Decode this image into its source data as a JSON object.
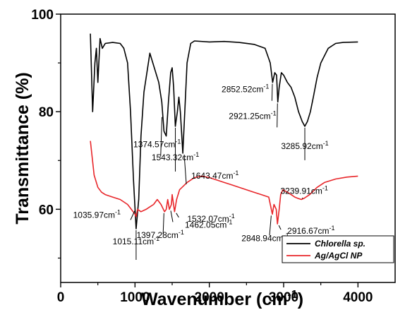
{
  "chart_data": {
    "type": "line",
    "xlabel": "Wavenumber (cm",
    "xlabel_sup": "-1",
    "xlabel_close": ")",
    "ylabel": "Transmittance (%)",
    "xlim": [
      0,
      4500
    ],
    "ylim": [
      45,
      100
    ],
    "x_ticks": [
      0,
      1000,
      2000,
      3000,
      4000
    ],
    "y_ticks": [
      60,
      80,
      100
    ],
    "x_tick_labels": [
      "0",
      "1000",
      "2000",
      "3000",
      "4000"
    ],
    "y_tick_labels": [
      "60",
      "80",
      "100"
    ],
    "legend_position": "bottom-right",
    "series": [
      {
        "name": "Chlorella sp.",
        "color": "#000000",
        "points": [
          [
            400,
            96
          ],
          [
            430,
            80
          ],
          [
            460,
            90
          ],
          [
            480,
            93
          ],
          [
            500,
            86
          ],
          [
            530,
            95
          ],
          [
            560,
            93
          ],
          [
            600,
            94
          ],
          [
            700,
            94.2
          ],
          [
            800,
            94
          ],
          [
            850,
            93
          ],
          [
            900,
            90
          ],
          [
            940,
            80
          ],
          [
            980,
            66
          ],
          [
            1015,
            56
          ],
          [
            1050,
            62
          ],
          [
            1080,
            75
          ],
          [
            1120,
            84
          ],
          [
            1160,
            88
          ],
          [
            1200,
            92
          ],
          [
            1240,
            90
          ],
          [
            1280,
            88
          ],
          [
            1320,
            86
          ],
          [
            1360,
            82
          ],
          [
            1390,
            76
          ],
          [
            1420,
            75
          ],
          [
            1450,
            82
          ],
          [
            1480,
            88
          ],
          [
            1500,
            89
          ],
          [
            1520,
            85
          ],
          [
            1543,
            77
          ],
          [
            1570,
            80
          ],
          [
            1590,
            83
          ],
          [
            1610,
            80
          ],
          [
            1643,
            71.5
          ],
          [
            1670,
            80
          ],
          [
            1700,
            90
          ],
          [
            1750,
            94
          ],
          [
            1800,
            94.5
          ],
          [
            2000,
            94.3
          ],
          [
            2200,
            94.4
          ],
          [
            2400,
            94.2
          ],
          [
            2600,
            93.8
          ],
          [
            2750,
            93
          ],
          [
            2820,
            90
          ],
          [
            2852,
            86
          ],
          [
            2880,
            88
          ],
          [
            2905,
            87.5
          ],
          [
            2921,
            82
          ],
          [
            2940,
            85
          ],
          [
            2970,
            88
          ],
          [
            3000,
            87.5
          ],
          [
            3050,
            86
          ],
          [
            3100,
            85
          ],
          [
            3150,
            83
          ],
          [
            3200,
            80
          ],
          [
            3250,
            78
          ],
          [
            3285,
            77
          ],
          [
            3320,
            78
          ],
          [
            3360,
            80
          ],
          [
            3400,
            83
          ],
          [
            3450,
            87
          ],
          [
            3500,
            90
          ],
          [
            3600,
            93
          ],
          [
            3700,
            94
          ],
          [
            3800,
            94.2
          ],
          [
            4000,
            94.3
          ]
        ]
      },
      {
        "name": "Ag/AgCl NP",
        "color": "#e8262a",
        "points": [
          [
            400,
            74
          ],
          [
            450,
            67
          ],
          [
            500,
            64.5
          ],
          [
            550,
            63.5
          ],
          [
            600,
            63
          ],
          [
            700,
            62.5
          ],
          [
            800,
            62
          ],
          [
            900,
            61
          ],
          [
            950,
            60
          ],
          [
            1000,
            59
          ],
          [
            1015,
            58.5
          ],
          [
            1035,
            60
          ],
          [
            1080,
            59.5
          ],
          [
            1150,
            60
          ],
          [
            1200,
            60.5
          ],
          [
            1250,
            61
          ],
          [
            1300,
            62
          ],
          [
            1350,
            61
          ],
          [
            1397,
            59.5
          ],
          [
            1420,
            60
          ],
          [
            1440,
            62
          ],
          [
            1462,
            60
          ],
          [
            1490,
            61
          ],
          [
            1500,
            63
          ],
          [
            1532,
            59.5
          ],
          [
            1560,
            62
          ],
          [
            1600,
            64
          ],
          [
            1700,
            65.5
          ],
          [
            1800,
            66.5
          ],
          [
            1900,
            66.8
          ],
          [
            2000,
            66.5
          ],
          [
            2100,
            66
          ],
          [
            2200,
            65.5
          ],
          [
            2300,
            65
          ],
          [
            2400,
            64.5
          ],
          [
            2500,
            64
          ],
          [
            2600,
            63.5
          ],
          [
            2700,
            63
          ],
          [
            2800,
            62.5
          ],
          [
            2848,
            59
          ],
          [
            2870,
            61
          ],
          [
            2900,
            60
          ],
          [
            2916,
            57
          ],
          [
            2940,
            60
          ],
          [
            2960,
            63
          ],
          [
            2990,
            64
          ],
          [
            3050,
            63.5
          ],
          [
            3100,
            63
          ],
          [
            3150,
            62.5
          ],
          [
            3200,
            62.2
          ],
          [
            3239,
            62
          ],
          [
            3280,
            62.3
          ],
          [
            3350,
            63
          ],
          [
            3450,
            64.5
          ],
          [
            3550,
            65.5
          ],
          [
            3700,
            66.2
          ],
          [
            3850,
            66.6
          ],
          [
            4000,
            66.8
          ]
        ]
      }
    ],
    "annotations": [
      {
        "text": "2852.52cm",
        "sup": "-1",
        "series": 0,
        "x": 2852
      },
      {
        "text": "2921.25cm",
        "sup": "-1",
        "series": 0,
        "x": 2921
      },
      {
        "text": "3285.92cm",
        "sup": "-1",
        "series": 0,
        "x": 3285
      },
      {
        "text": "1643.47cm",
        "sup": "-1",
        "series": 0,
        "x": 1643
      },
      {
        "text": "1543.32cm",
        "sup": "-1",
        "series": 0,
        "x": 1543
      },
      {
        "text": "1374.57cm",
        "sup": "-1",
        "series": 0,
        "x": 1374
      },
      {
        "text": "1035.97cm",
        "sup": "-1",
        "series": 1,
        "x": 1035
      },
      {
        "text": "1015.11cm",
        "sup": "-1",
        "series": 0,
        "x": 1015
      },
      {
        "text": "1532.07cm",
        "sup": "-1",
        "series": 1,
        "x": 1532
      },
      {
        "text": "1462.05cm",
        "sup": "-1",
        "series": 1,
        "x": 1462
      },
      {
        "text": "1397.28cm",
        "sup": "-1",
        "series": 1,
        "x": 1397
      },
      {
        "text": "2916.67cm",
        "sup": "-1",
        "series": 1,
        "x": 2916
      },
      {
        "text": "2848.94cm",
        "sup": "-1",
        "series": 1,
        "x": 2848
      },
      {
        "text": "3239.91cm",
        "sup": "-1",
        "series": 1,
        "x": 3239
      }
    ]
  }
}
